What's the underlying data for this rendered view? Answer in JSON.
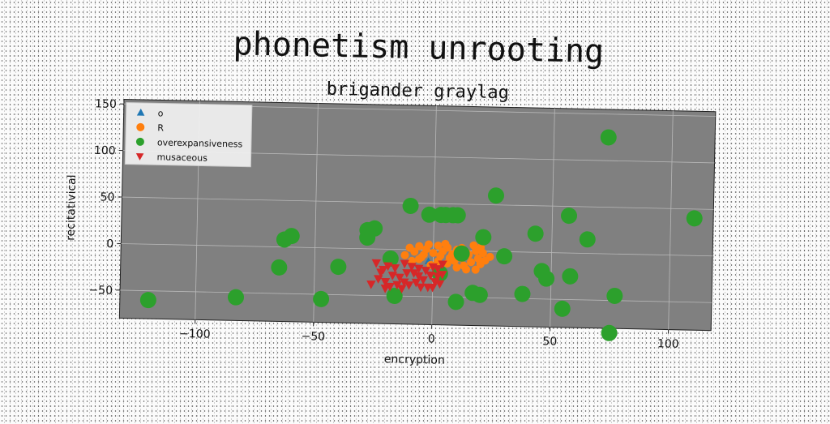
{
  "chart_data": {
    "type": "scatter",
    "title": "phonetism unrooting",
    "subtitle": "brigander graylag",
    "xlabel": "encryption",
    "ylabel": "recitativical",
    "xlim": [
      -132,
      118
    ],
    "ylim": [
      -80,
      155
    ],
    "xticks": [
      -100,
      -50,
      0,
      50,
      100
    ],
    "yticks": [
      -50,
      0,
      50,
      100,
      150
    ],
    "grid": true,
    "legend_position": "top-left",
    "plot_background": "#808080",
    "series": [
      {
        "name": "o",
        "marker": "triangle-up",
        "color": "#1f77b4",
        "size": 5,
        "points": [
          [
            -2,
            -12
          ]
        ]
      },
      {
        "name": "R",
        "marker": "circle",
        "color": "#ff7f0e",
        "size": 5,
        "points": [
          [
            -10,
            2
          ],
          [
            -6,
            4
          ],
          [
            -2,
            6
          ],
          [
            2,
            5
          ],
          [
            6,
            3
          ],
          [
            10,
            1
          ],
          [
            14,
            -2
          ],
          [
            18,
            0
          ],
          [
            20,
            4
          ],
          [
            17,
            6
          ],
          [
            -8,
            -2
          ],
          [
            -4,
            -5
          ],
          [
            0,
            -3
          ],
          [
            4,
            -1
          ],
          [
            8,
            -4
          ],
          [
            12,
            -8
          ],
          [
            16,
            -12
          ],
          [
            20,
            -14
          ],
          [
            22,
            -10
          ],
          [
            24,
            -6
          ],
          [
            -12,
            -6
          ],
          [
            -6,
            -10
          ],
          [
            2,
            -12
          ],
          [
            6,
            -14
          ],
          [
            10,
            -18
          ],
          [
            14,
            -20
          ],
          [
            18,
            -20
          ],
          [
            -3,
            1
          ],
          [
            5,
            7
          ],
          [
            12,
            3
          ],
          [
            -9,
            -12
          ],
          [
            -1,
            -16
          ],
          [
            7,
            -8
          ],
          [
            15,
            -4
          ],
          [
            21,
            -2
          ],
          [
            3,
            -6
          ],
          [
            -5,
            -8
          ],
          [
            9,
            -11
          ],
          [
            13,
            -16
          ],
          [
            19,
            -8
          ]
        ]
      },
      {
        "name": "overexpansiveness",
        "marker": "circle",
        "color": "#2ca02c",
        "size": 10,
        "points": [
          [
            -120,
            -60
          ],
          [
            -83,
            -55
          ],
          [
            -65,
            -22
          ],
          [
            -60,
            12
          ],
          [
            -63,
            8
          ],
          [
            -47,
            -55
          ],
          [
            -40,
            -20
          ],
          [
            -28,
            12
          ],
          [
            -28,
            20
          ],
          [
            -25,
            22
          ],
          [
            -18,
            -10
          ],
          [
            -16,
            -50
          ],
          [
            -10,
            47
          ],
          [
            -2,
            38
          ],
          [
            3,
            38
          ],
          [
            5,
            38
          ],
          [
            8,
            38
          ],
          [
            10,
            38
          ],
          [
            3,
            -25
          ],
          [
            10,
            -55
          ],
          [
            12,
            -3
          ],
          [
            17,
            -45
          ],
          [
            20,
            -47
          ],
          [
            21,
            15
          ],
          [
            26,
            60
          ],
          [
            30,
            -5
          ],
          [
            38,
            -45
          ],
          [
            43,
            20
          ],
          [
            46,
            -20
          ],
          [
            48,
            -28
          ],
          [
            55,
            -60
          ],
          [
            58,
            -25
          ],
          [
            57,
            40
          ],
          [
            65,
            15
          ],
          [
            73,
            125
          ],
          [
            75,
            -85
          ],
          [
            77,
            -45
          ],
          [
            110,
            40
          ]
        ]
      },
      {
        "name": "musaceous",
        "marker": "triangle-down",
        "color": "#d62728",
        "size": 6,
        "points": [
          [
            -24,
            -15
          ],
          [
            -22,
            -25
          ],
          [
            -20,
            -35
          ],
          [
            -18,
            -40
          ],
          [
            -16,
            -20
          ],
          [
            -14,
            -30
          ],
          [
            -12,
            -15
          ],
          [
            -10,
            -38
          ],
          [
            -8,
            -25
          ],
          [
            -6,
            -20
          ],
          [
            -4,
            -32
          ],
          [
            -2,
            -40
          ],
          [
            0,
            -18
          ],
          [
            2,
            -28
          ],
          [
            3,
            -36
          ],
          [
            4,
            -15
          ],
          [
            -23,
            -32
          ],
          [
            -19,
            -18
          ],
          [
            -15,
            -38
          ],
          [
            -11,
            -25
          ],
          [
            -7,
            -35
          ],
          [
            -3,
            -22
          ],
          [
            1,
            -34
          ],
          [
            -17,
            -28
          ],
          [
            -13,
            -42
          ],
          [
            -9,
            -18
          ],
          [
            -5,
            -40
          ],
          [
            -1,
            -27
          ],
          [
            -21,
            -22
          ],
          [
            2,
            -20
          ],
          [
            -26,
            -38
          ],
          [
            -20,
            -42
          ],
          [
            -12,
            -35
          ],
          [
            -6,
            -28
          ],
          [
            0,
            -40
          ],
          [
            4,
            -26
          ]
        ]
      }
    ]
  }
}
